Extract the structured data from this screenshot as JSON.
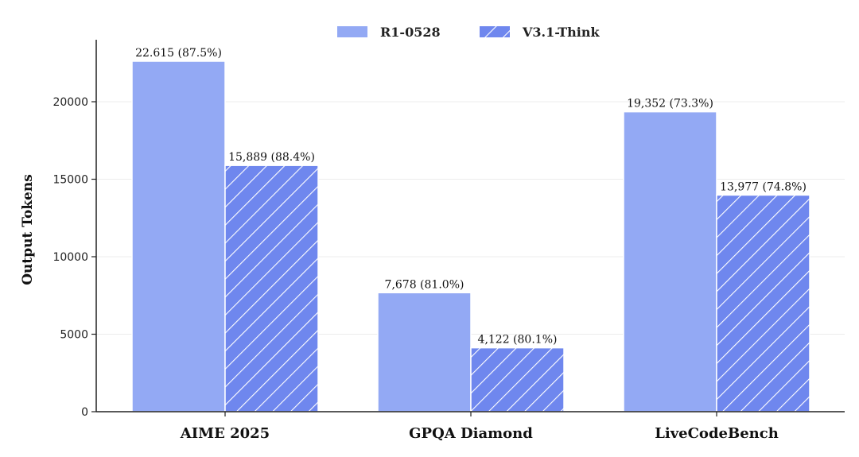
{
  "chart_data": {
    "type": "bar",
    "title": "",
    "xlabel": "",
    "ylabel": "Output Tokens",
    "ylim": [
      0,
      24000
    ],
    "yticks": [
      0,
      5000,
      10000,
      15000,
      20000
    ],
    "grid": true,
    "legend_position": "top-center",
    "categories": [
      "AIME 2025",
      "GPQA Diamond",
      "LiveCodeBench"
    ],
    "series": [
      {
        "name": "R1-0528",
        "style": "solid",
        "color": "#93a9f4",
        "values": [
          22615,
          7678,
          19352
        ],
        "labels": [
          "22.615 (87.5%)",
          "7,678 (81.0%)",
          "19,352 (73.3%)"
        ]
      },
      {
        "name": "V3.1-Think",
        "style": "hatched",
        "color": "#6f87ee",
        "values": [
          15889,
          4122,
          13977
        ],
        "labels": [
          "15,889 (88.4%)",
          "4,122 (80.1%)",
          "13,977 (74.8%)"
        ]
      }
    ]
  }
}
